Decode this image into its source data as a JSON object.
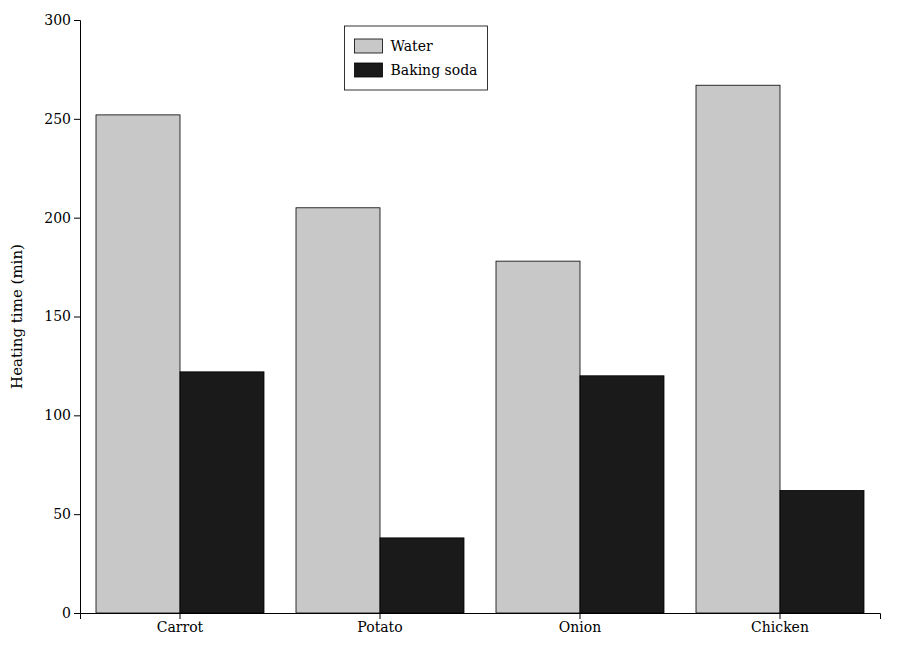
{
  "chart_data": {
    "type": "bar",
    "categories": [
      "Carrot",
      "Potato",
      "Onion",
      "Chicken"
    ],
    "series": [
      {
        "name": "Water",
        "color": "#c8c8c8",
        "values": [
          252,
          205,
          178,
          267
        ]
      },
      {
        "name": "Baking soda",
        "color": "#1a1a1a",
        "values": [
          122,
          38,
          120,
          62
        ]
      }
    ],
    "ylabel": "Heating time (min)",
    "ylim": [
      0,
      300
    ],
    "yticks": [
      0,
      50,
      100,
      150,
      200,
      250,
      300
    ],
    "grid": false,
    "legend": "top"
  }
}
